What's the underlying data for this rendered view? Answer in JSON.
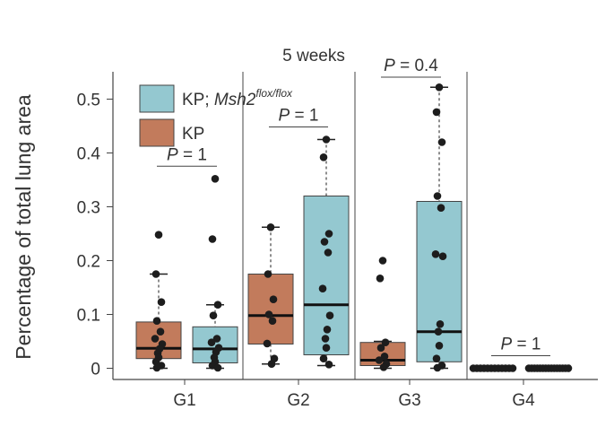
{
  "chart_data": {
    "type": "box",
    "title": "5 weeks",
    "ylabel": "Percentage of total lung area",
    "xlabel": "",
    "ylim": [
      0,
      0.55
    ],
    "yticks": [
      0,
      0.1,
      0.2,
      0.3,
      0.4,
      0.5
    ],
    "ytick_labels": [
      "0",
      "0.1",
      "0.2",
      "0.3",
      "0.4",
      "0.5"
    ],
    "categories": [
      "G1",
      "G2",
      "G3",
      "G4"
    ],
    "series": [
      {
        "name": "KP",
        "color": "#c27b5c"
      },
      {
        "name": "KP; Msh2",
        "name_main": "KP; ",
        "name_italic": "Msh2",
        "name_superscript": "flox/flox",
        "color": "#94c8d0"
      }
    ],
    "legend": {
      "position": "top-left",
      "entries": [
        {
          "series": 1,
          "label_main": "KP; ",
          "label_italic": "Msh2",
          "label_sup": "flox/flox"
        },
        {
          "series": 0,
          "label_main": "KP"
        }
      ]
    },
    "groups": [
      {
        "label": "G1",
        "p_value": {
          "italic": "P",
          "text": " = 1"
        },
        "boxes": [
          {
            "series": "KP",
            "q1": 0.018,
            "median": 0.037,
            "q3": 0.086,
            "whisker_low": 0.0,
            "whisker_high": 0.175,
            "points": [
              0.248,
              0.175,
              0.123,
              0.088,
              0.068,
              0.055,
              0.045,
              0.036,
              0.028,
              0.02,
              0.012,
              0.005,
              0.001
            ]
          },
          {
            "series": "KP; Msh2",
            "q1": 0.01,
            "median": 0.036,
            "q3": 0.077,
            "whisker_low": 0.0,
            "whisker_high": 0.118,
            "points": [
              0.352,
              0.24,
              0.118,
              0.098,
              0.055,
              0.048,
              0.038,
              0.03,
              0.02,
              0.012,
              0.005,
              0.001
            ]
          }
        ]
      },
      {
        "label": "G2",
        "p_value": {
          "italic": "P",
          "text": " = 1"
        },
        "boxes": [
          {
            "series": "KP",
            "q1": 0.045,
            "median": 0.098,
            "q3": 0.175,
            "whisker_low": 0.008,
            "whisker_high": 0.262,
            "points": [
              0.262,
              0.175,
              0.128,
              0.1,
              0.088,
              0.046,
              0.018,
              0.008
            ]
          },
          {
            "series": "KP; Msh2",
            "q1": 0.025,
            "median": 0.118,
            "q3": 0.32,
            "whisker_low": 0.005,
            "whisker_high": 0.425,
            "points": [
              0.425,
              0.392,
              0.25,
              0.235,
              0.215,
              0.148,
              0.098,
              0.072,
              0.055,
              0.038,
              0.018,
              0.007
            ]
          }
        ]
      },
      {
        "label": "G3",
        "p_value": {
          "italic": "P",
          "text": " = 0.4"
        },
        "boxes": [
          {
            "series": "KP",
            "q1": 0.005,
            "median": 0.015,
            "q3": 0.048,
            "whisker_low": 0.0,
            "whisker_high": 0.05,
            "points": [
              0.2,
              0.167,
              0.048,
              0.038,
              0.022,
              0.015,
              0.008,
              0.002
            ]
          },
          {
            "series": "KP; Msh2",
            "q1": 0.012,
            "median": 0.068,
            "q3": 0.31,
            "whisker_low": 0.0,
            "whisker_high": 0.522,
            "points": [
              0.522,
              0.476,
              0.42,
              0.32,
              0.298,
              0.212,
              0.208,
              0.082,
              0.068,
              0.042,
              0.018,
              0.005,
              0.001
            ]
          }
        ]
      },
      {
        "label": "G4",
        "p_value": {
          "italic": "P",
          "text": " = 1"
        },
        "boxes": [
          {
            "series": "KP",
            "q1": 0.0,
            "median": 0.0,
            "q3": 0.0,
            "whisker_low": 0.0,
            "whisker_high": 0.0,
            "points": [
              0,
              0,
              0,
              0,
              0,
              0,
              0,
              0,
              0,
              0,
              0,
              0
            ]
          },
          {
            "series": "KP; Msh2",
            "q1": 0.0,
            "median": 0.0,
            "q3": 0.0,
            "whisker_low": 0.0,
            "whisker_high": 0.0,
            "points": [
              0,
              0,
              0,
              0,
              0,
              0,
              0,
              0,
              0,
              0,
              0,
              0,
              0,
              0,
              0
            ]
          }
        ]
      }
    ]
  }
}
